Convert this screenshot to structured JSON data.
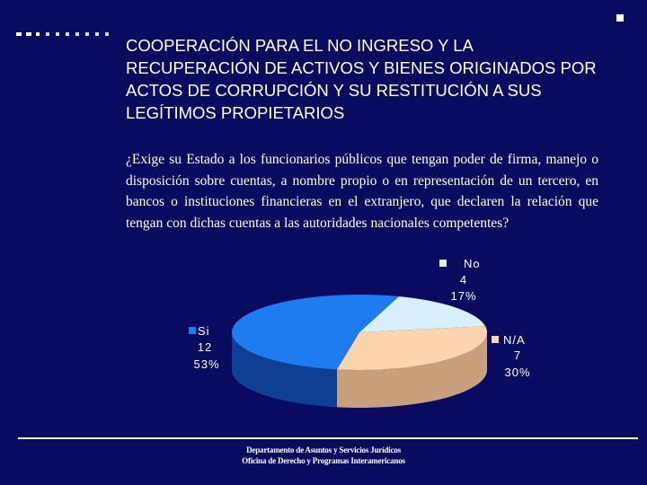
{
  "slide": {
    "title": "COOPERACIÓN PARA EL NO INGRESO Y LA RECUPERACIÓN DE ACTIVOS Y BIENES ORIGINADOS POR ACTOS DE CORRUPCIÓN Y SU RESTITUCIÓN A SUS LEGÍTIMOS PROPIETARIOS",
    "question": "¿Exige su Estado a los funcionarios públicos que tengan poder de firma, manejo o disposición sobre cuentas, a nombre propio o en representación de un tercero, en bancos o instituciones financieras en el extranjero, que declaren la relación que tengan con dichas cuentas a las autoridades nacionales competentes?",
    "footer_line1": "Departamento de Asuntos y Servicios Jurídicos",
    "footer_line2": "Oficina de Derecho y Programas Interamericanos"
  },
  "colors": {
    "background": "#0a0a5e",
    "si": "#1f7bf0",
    "si_side": "#0d3f93",
    "no": "#d6f0ff",
    "no_side": "#9bb7cc",
    "na": "#fad5b0",
    "na_side": "#c9a07e"
  },
  "chart_data": {
    "type": "pie",
    "style": "3d",
    "slices": [
      {
        "label": "No",
        "value": 4,
        "percent": "17%"
      },
      {
        "label": "N/A",
        "value": 7,
        "percent": "30%"
      },
      {
        "label": "Si",
        "value": 12,
        "percent": "53%"
      }
    ]
  }
}
